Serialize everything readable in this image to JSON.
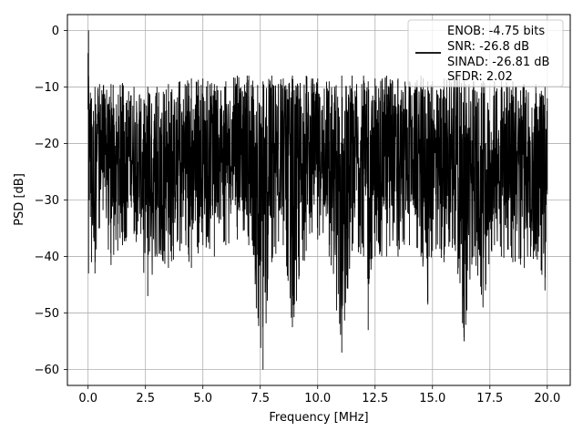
{
  "chart_data": {
    "type": "line",
    "title": "",
    "xlabel": "Frequency [MHz]",
    "ylabel": "PSD [dB]",
    "xlim": [
      -0.9,
      21.0
    ],
    "ylim": [
      -62.8,
      2.8
    ],
    "xticks": [
      0.0,
      2.5,
      5.0,
      7.5,
      10.0,
      12.5,
      15.0,
      17.5,
      20.0
    ],
    "xtick_labels": [
      "0.0",
      "2.5",
      "5.0",
      "7.5",
      "10.0",
      "12.5",
      "15.0",
      "17.5",
      "20.0"
    ],
    "yticks": [
      0,
      -10,
      -20,
      -30,
      -40,
      -50,
      -60
    ],
    "ytick_labels": [
      "0",
      "−10",
      "−20",
      "−30",
      "−40",
      "−50",
      "−60"
    ],
    "grid": true,
    "legend_position": "top-right",
    "legend_lines": [
      "ENOB: -4.75 bits",
      "SNR: -26.8 dB",
      "SINAD: -26.81 dB",
      "SFDR: 2.02"
    ],
    "series": [
      {
        "color": "#000000",
        "description_points": {
          "x": [
            0.0,
            0.02,
            0.05,
            0.1,
            0.15,
            0.3,
            0.5,
            1.0,
            1.5,
            2.0,
            2.6,
            3.0,
            3.5,
            4.0,
            4.5,
            5.0,
            5.5,
            6.0,
            6.5,
            7.0,
            7.62,
            8.0,
            8.5,
            8.9,
            9.5,
            10.0,
            10.5,
            11.05,
            11.5,
            12.0,
            12.2,
            12.5,
            13.0,
            13.5,
            14.0,
            14.5,
            14.8,
            15.0,
            15.5,
            16.0,
            16.38,
            16.8,
            17.2,
            17.7,
            18.0,
            18.5,
            19.0,
            19.5,
            19.9,
            20.0
          ],
          "y_max": [
            -4,
            0,
            -14,
            -11,
            -12,
            -10,
            -9.5,
            -9.5,
            -9.3,
            -10.0,
            -10.0,
            -10.0,
            -9.5,
            -9.0,
            -8.5,
            -8.5,
            -9.5,
            -9.0,
            -8.0,
            -8.0,
            -9.0,
            -8.0,
            -8.5,
            -8.0,
            -8.0,
            -8.5,
            -9.0,
            -8.0,
            -8.0,
            -8.0,
            -9.0,
            -8.5,
            -8.0,
            -8.5,
            -9.0,
            -8.0,
            -9.0,
            -9.0,
            -8.5,
            -8.0,
            -9.0,
            -9.0,
            -9.0,
            -9.0,
            -9.0,
            -9.0,
            -9.5,
            -9.5,
            -10.0,
            -12.0
          ],
          "y_min": [
            -14,
            -43,
            -30,
            -33,
            -41,
            -43,
            -35,
            -41.5,
            -38,
            -36,
            -47,
            -40,
            -42,
            -39,
            -42,
            -38,
            -40,
            -38,
            -37,
            -38,
            -60,
            -41,
            -38,
            -52.5,
            -39,
            -37,
            -40,
            -57,
            -39,
            -40,
            -53,
            -40,
            -40,
            -40,
            -38,
            -40,
            -48.5,
            -39,
            -41,
            -39,
            -55,
            -40,
            -49,
            -38,
            -40,
            -41,
            -42,
            -40,
            -46,
            -29
          ]
        }
      }
    ]
  }
}
